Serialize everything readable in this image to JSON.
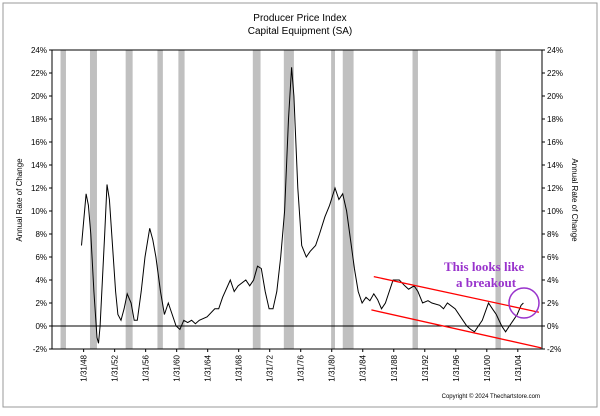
{
  "chart_data": {
    "type": "line",
    "title": "Producer Price Index",
    "subtitle": "Capital Equipment (SA)",
    "ylabel": "Annual Rate of Change",
    "y2label": "Annual Rate of Change",
    "copyright": "Copyright © 2024 Thechartstore.com",
    "annotation": [
      "This looks like",
      "a breakout"
    ],
    "annotation_color": "#9933cc",
    "xlim": [
      1944,
      2007.2
    ],
    "ylim": [
      -2,
      24
    ],
    "y2lim": [
      -2,
      24
    ],
    "xticks": [
      {
        "value": 1948.08,
        "label": "1/31/48"
      },
      {
        "value": 1952.08,
        "label": "1/31/52"
      },
      {
        "value": 1956.08,
        "label": "1/31/56"
      },
      {
        "value": 1960.08,
        "label": "1/31/60"
      },
      {
        "value": 1964.08,
        "label": "1/31/64"
      },
      {
        "value": 1968.08,
        "label": "1/31/68"
      },
      {
        "value": 1972.08,
        "label": "1/31/72"
      },
      {
        "value": 1976.08,
        "label": "1/31/76"
      },
      {
        "value": 1980.08,
        "label": "1/31/80"
      },
      {
        "value": 1984.08,
        "label": "1/31/84"
      },
      {
        "value": 1988.08,
        "label": "1/31/88"
      },
      {
        "value": 1992.08,
        "label": "1/31/92"
      },
      {
        "value": 1996.08,
        "label": "1/31/96"
      },
      {
        "value": 2000.08,
        "label": "1/31/00"
      },
      {
        "value": 2004.08,
        "label": "1/31/04"
      }
    ],
    "yticks": [
      {
        "value": -2,
        "label": "-2%"
      },
      {
        "value": 0,
        "label": "0%"
      },
      {
        "value": 2,
        "label": "2%"
      },
      {
        "value": 4,
        "label": "4%"
      },
      {
        "value": 6,
        "label": "6%"
      },
      {
        "value": 8,
        "label": "8%"
      },
      {
        "value": 10,
        "label": "10%"
      },
      {
        "value": 12,
        "label": "12%"
      },
      {
        "value": 14,
        "label": "14%"
      },
      {
        "value": 16,
        "label": "16%"
      },
      {
        "value": 18,
        "label": "18%"
      },
      {
        "value": 20,
        "label": "20%"
      },
      {
        "value": 22,
        "label": "22%"
      },
      {
        "value": 24,
        "label": "24%"
      }
    ],
    "y2ticks": [
      {
        "value": -2,
        "label": "-2%"
      },
      {
        "value": 0,
        "label": "0%"
      },
      {
        "value": 2,
        "label": "2%"
      },
      {
        "value": 4,
        "label": "4%"
      },
      {
        "value": 6,
        "label": "6%"
      },
      {
        "value": 8,
        "label": "8%"
      },
      {
        "value": 10,
        "label": "10%"
      },
      {
        "value": 12,
        "label": "12%"
      },
      {
        "value": 14,
        "label": "14%"
      },
      {
        "value": 16,
        "label": "16%"
      },
      {
        "value": 18,
        "label": "18%"
      },
      {
        "value": 20,
        "label": "20%"
      },
      {
        "value": 22,
        "label": "22%"
      },
      {
        "value": 24,
        "label": "24%"
      }
    ],
    "shaded_periods": [
      [
        1945.1,
        1945.8
      ],
      [
        1948.9,
        1949.8
      ],
      [
        1953.5,
        1954.4
      ],
      [
        1957.6,
        1958.3
      ],
      [
        1960.3,
        1961.1
      ],
      [
        1969.9,
        1970.9
      ],
      [
        1973.9,
        1975.2
      ],
      [
        1980.0,
        1980.5
      ],
      [
        1981.5,
        1982.9
      ],
      [
        1990.5,
        1991.2
      ],
      [
        2001.2,
        2001.9
      ]
    ],
    "shade_color": "#c0c0c0",
    "series": [
      {
        "color": "#000000",
        "x": [
          1947.8,
          1948.4,
          1948.7,
          1949.0,
          1949.4,
          1949.8,
          1950.0,
          1950.2,
          1950.5,
          1950.8,
          1951.1,
          1951.4,
          1951.8,
          1952.2,
          1952.5,
          1952.9,
          1953.3,
          1953.7,
          1954.2,
          1954.6,
          1955.0,
          1955.5,
          1956.0,
          1956.6,
          1957.0,
          1957.4,
          1958.0,
          1958.5,
          1959.0,
          1959.5,
          1960.0,
          1960.5,
          1961.0,
          1961.5,
          1962.0,
          1962.5,
          1963.0,
          1964.0,
          1965.0,
          1965.5,
          1966.0,
          1967.0,
          1967.5,
          1968.0,
          1969.0,
          1969.5,
          1970.0,
          1970.5,
          1971.0,
          1971.5,
          1972.0,
          1972.5,
          1973.0,
          1973.5,
          1974.0,
          1974.5,
          1974.9,
          1975.2,
          1975.7,
          1976.2,
          1976.8,
          1977.3,
          1978.0,
          1978.5,
          1979.2,
          1979.8,
          1980.5,
          1981.0,
          1981.5,
          1982.0,
          1982.6,
          1983.0,
          1983.5,
          1984.0,
          1984.5,
          1985.0,
          1985.5,
          1986.0,
          1986.5,
          1987.0,
          1988.0,
          1988.8,
          1989.5,
          1990.0,
          1990.7,
          1991.2,
          1991.8,
          1992.5,
          1993.0,
          1994.0,
          1994.5,
          1995.0,
          1996.0,
          1997.0,
          1997.5,
          1998.0,
          1998.5,
          1999.0,
          1999.5,
          2000.3,
          2000.8,
          2001.3,
          2002.0,
          2002.5,
          2003.0,
          2003.5,
          2004.0,
          2004.5,
          2004.8
        ],
        "values": [
          7,
          11.5,
          10.5,
          8,
          3,
          -1,
          -1.5,
          0,
          4,
          8,
          12.3,
          11,
          7,
          3,
          1,
          0.5,
          1.5,
          2.8,
          2,
          0.5,
          0.5,
          3,
          6,
          8.5,
          7.5,
          6,
          3,
          1,
          2,
          1,
          0,
          -0.3,
          0.5,
          0.3,
          0.5,
          0.2,
          0.5,
          0.8,
          1.5,
          1.5,
          2.5,
          4,
          3,
          3.5,
          4,
          3.5,
          4,
          5.2,
          5,
          3,
          1.5,
          1.5,
          3,
          6,
          10,
          18,
          22.5,
          20,
          12,
          7,
          6,
          6.5,
          7,
          8,
          9.5,
          10.5,
          12,
          11,
          11.5,
          10,
          7,
          5,
          3,
          2,
          2.5,
          2.2,
          2.8,
          2.3,
          1.5,
          2,
          4,
          4,
          3.5,
          3.2,
          3.5,
          3,
          2,
          2.2,
          2,
          1.8,
          1.5,
          2,
          1.5,
          0.5,
          0,
          -0.3,
          -0.5,
          0,
          0.5,
          2,
          1.5,
          1,
          0,
          -0.5,
          0,
          0.5,
          1,
          1.8,
          2
        ]
      }
    ],
    "trendlines": [
      {
        "color": "#ff0000",
        "x": [
          1985.5,
          2006.8
        ],
        "values": [
          4.3,
          1.2
        ]
      },
      {
        "color": "#ff0000",
        "x": [
          1985.2,
          2007.1
        ],
        "values": [
          1.4,
          -1.9
        ]
      }
    ]
  }
}
